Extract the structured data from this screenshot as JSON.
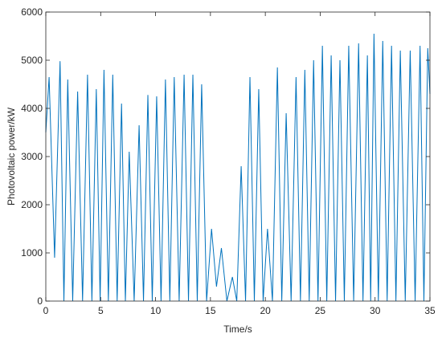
{
  "chart_data": {
    "type": "line",
    "xlabel": "Time/s",
    "ylabel": "Photovoltaic power/kW",
    "x": [
      0,
      0.3,
      0.8,
      1.3,
      1.65,
      2.0,
      2.45,
      2.9,
      3.35,
      3.8,
      4.2,
      4.6,
      4.95,
      5.3,
      5.7,
      6.1,
      6.5,
      6.9,
      7.25,
      7.6,
      8.05,
      8.5,
      8.9,
      9.3,
      9.7,
      10.1,
      10.5,
      10.9,
      11.3,
      11.7,
      12.15,
      12.6,
      13.0,
      13.4,
      13.8,
      14.2,
      14.65,
      15.1,
      15.55,
      16.0,
      16.5,
      17.0,
      17.4,
      17.8,
      18.2,
      18.6,
      19.0,
      19.4,
      19.8,
      20.2,
      20.65,
      21.1,
      21.5,
      21.9,
      22.35,
      22.8,
      23.2,
      23.6,
      24.0,
      24.4,
      24.8,
      25.2,
      25.6,
      26.0,
      26.4,
      26.8,
      27.2,
      27.6,
      28.05,
      28.5,
      28.9,
      29.3,
      29.6,
      29.9,
      30.3,
      30.7,
      31.1,
      31.5,
      31.9,
      32.3,
      32.75,
      33.2,
      33.65,
      34.1,
      34.45,
      34.8,
      35
    ],
    "series": [
      {
        "name": null,
        "color": "#0072bd",
        "values": [
          3500,
          4650,
          900,
          4980,
          0,
          4600,
          0,
          4350,
          0,
          4700,
          0,
          4400,
          0,
          4800,
          0,
          4700,
          0,
          4100,
          0,
          3100,
          0,
          3650,
          0,
          4280,
          0,
          4250,
          0,
          4600,
          0,
          4650,
          0,
          4700,
          0,
          4700,
          0,
          4500,
          0,
          1500,
          300,
          1100,
          0,
          500,
          0,
          2800,
          0,
          4650,
          0,
          4400,
          0,
          1500,
          0,
          4850,
          0,
          3900,
          0,
          4650,
          0,
          4800,
          0,
          5000,
          0,
          5300,
          0,
          5100,
          0,
          5000,
          0,
          5300,
          0,
          5350,
          0,
          5100,
          0,
          5550,
          0,
          5400,
          0,
          5300,
          0,
          5200,
          0,
          5200,
          0,
          5300,
          0,
          5250,
          4300
        ]
      }
    ],
    "xlim": [
      0,
      35
    ],
    "xticks": [
      0,
      5,
      10,
      15,
      20,
      25,
      30,
      35
    ],
    "ylim": [
      0,
      6000
    ],
    "yticks": [
      0,
      1000,
      2000,
      3000,
      4000,
      5000,
      6000
    ],
    "grid": false
  }
}
